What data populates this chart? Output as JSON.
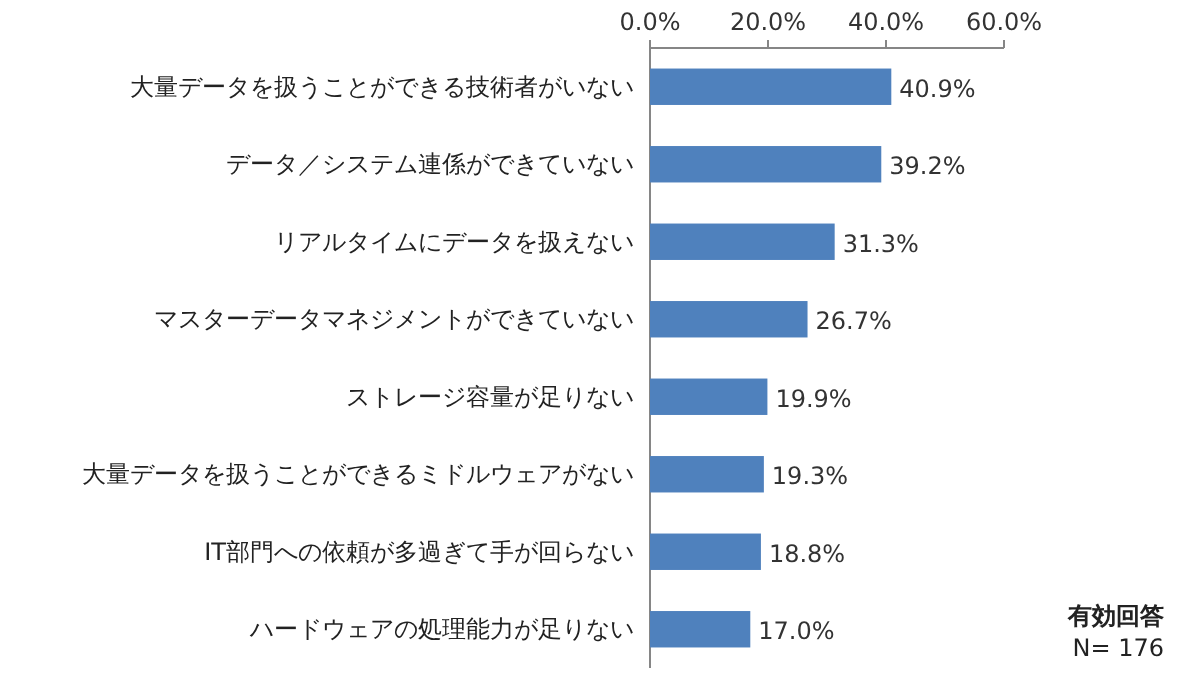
{
  "chart_data": {
    "type": "bar",
    "orientation": "horizontal",
    "categories": [
      "大量データを扱うことができる技術者がいない",
      "データ／システム連係ができていない",
      "リアルタイムにデータを扱えない",
      "マスターデータマネジメントができていない",
      "ストレージ容量が足りない",
      "大量データを扱うことができるミドルウェアがない",
      "IT部門への依頼が多過ぎて手が回らない",
      "ハードウェアの処理能力が足りない"
    ],
    "values": [
      40.9,
      39.2,
      31.3,
      26.7,
      19.9,
      19.3,
      18.8,
      17.0
    ],
    "value_labels": [
      "40.9%",
      "39.2%",
      "31.3%",
      "26.7%",
      "19.9%",
      "19.3%",
      "18.8%",
      "17.0%"
    ],
    "color": "#4f81bd",
    "xlim": [
      0,
      60
    ],
    "xticks": [
      {
        "value": 0,
        "label": "0.0%"
      },
      {
        "value": 20,
        "label": "20.0%"
      },
      {
        "value": 40,
        "label": "40.0%"
      },
      {
        "value": 60,
        "label": "60.0%"
      }
    ],
    "annotations": [
      "有効回答\nN= 176"
    ]
  }
}
